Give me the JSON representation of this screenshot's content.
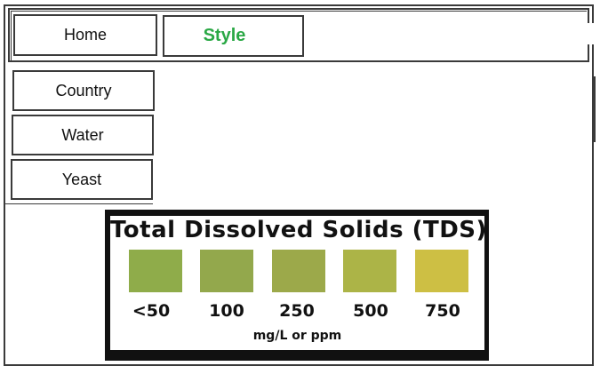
{
  "top_nav": {
    "home_label": "Home",
    "style_label": "Style",
    "active_color": "#2aa845"
  },
  "sidebar": {
    "items": [
      {
        "label": "Country"
      },
      {
        "label": "Water"
      },
      {
        "label": "Yeast"
      }
    ]
  },
  "tds_chart": {
    "title": "Total Dissolved Solids (TDS)",
    "unit": "mg/L or ppm",
    "swatches": [
      {
        "label": "<50",
        "color": "#8fac4a"
      },
      {
        "label": "100",
        "color": "#93a84c"
      },
      {
        "label": "250",
        "color": "#9ca94a"
      },
      {
        "label": "500",
        "color": "#acb447"
      },
      {
        "label": "750",
        "color": "#cdbf44"
      }
    ]
  }
}
